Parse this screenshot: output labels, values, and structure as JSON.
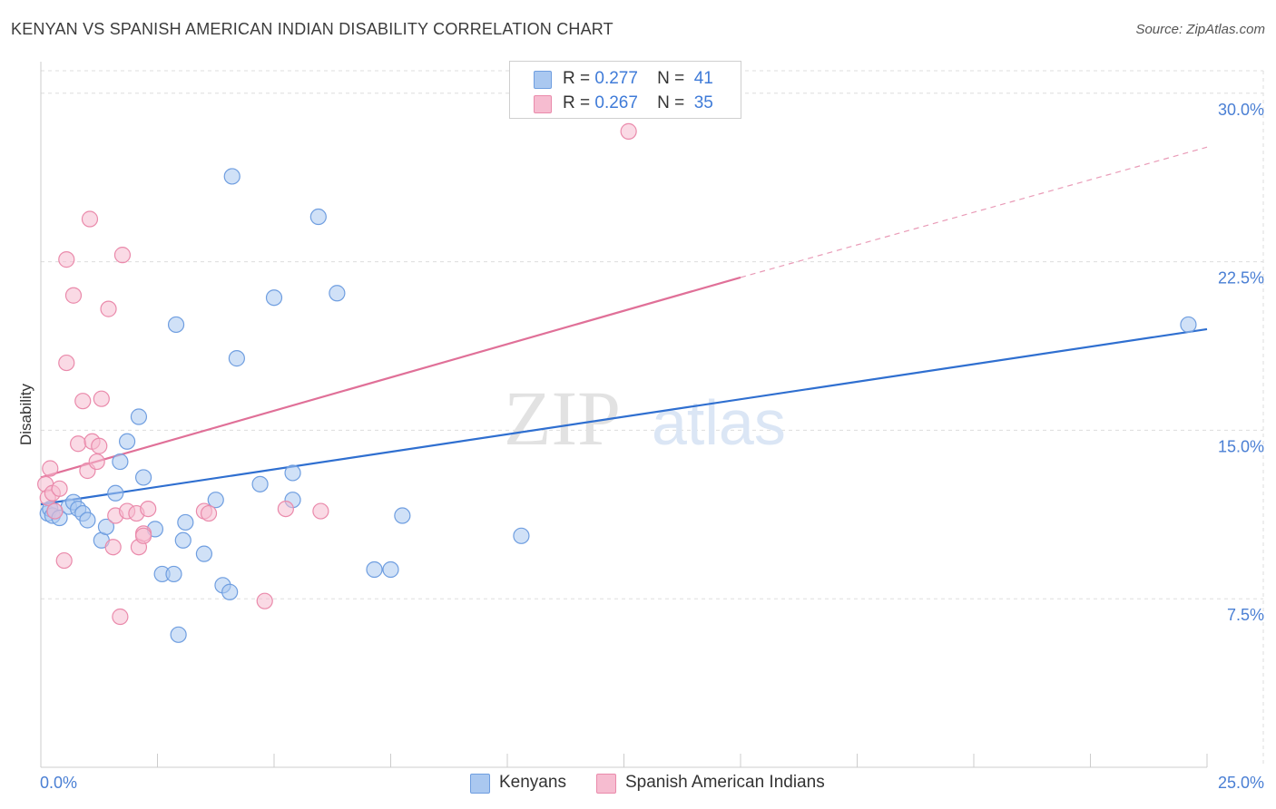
{
  "header": {
    "title": "KENYAN VS SPANISH AMERICAN INDIAN DISABILITY CORRELATION CHART",
    "source": "Source: ZipAtlas.com"
  },
  "legend": {
    "rows": [
      {
        "r_label": "R =",
        "r_value": "0.277",
        "n_label": "N =",
        "n_value": "41"
      },
      {
        "r_label": "R =",
        "r_value": "0.267",
        "n_label": "N =",
        "n_value": "35"
      }
    ]
  },
  "bottom_legend": {
    "kenyans": "Kenyans",
    "spanish": "Spanish American Indians"
  },
  "colors": {
    "blue_fill": "#aac8f0",
    "blue_stroke": "#6f9ee0",
    "blue_line": "#2f6fd0",
    "pink_fill": "#f6bcd0",
    "pink_stroke": "#ea8aab",
    "pink_line": "#e07098",
    "grid": "#dddddd",
    "tick_text": "#4a7fd4"
  },
  "chart_data": {
    "type": "scatter",
    "title": "KENYAN VS SPANISH AMERICAN INDIAN DISABILITY CORRELATION CHART",
    "xlabel": "",
    "ylabel": "Disability",
    "xlim": [
      0,
      25
    ],
    "ylim": [
      0,
      31
    ],
    "x_tick_labels": [
      "0.0%",
      "25.0%"
    ],
    "y_ticks": [
      7.5,
      15.0,
      22.5,
      30.0
    ],
    "y_tick_labels": [
      "7.5%",
      "15.0%",
      "22.5%",
      "30.0%"
    ],
    "grid": "horizontal dashed",
    "legend_position": "top-center",
    "series": [
      {
        "name": "Kenyans",
        "r": 0.277,
        "n": 41,
        "trend": {
          "x0": 0.0,
          "y0": 11.7,
          "x1": 25.0,
          "y1": 19.5
        },
        "points": [
          [
            0.15,
            11.3
          ],
          [
            0.2,
            11.5
          ],
          [
            0.25,
            11.2
          ],
          [
            0.3,
            11.4
          ],
          [
            0.4,
            11.1
          ],
          [
            0.6,
            11.6
          ],
          [
            0.7,
            11.8
          ],
          [
            0.8,
            11.5
          ],
          [
            0.9,
            11.3
          ],
          [
            1.0,
            11.0
          ],
          [
            1.3,
            10.1
          ],
          [
            1.4,
            10.7
          ],
          [
            1.6,
            12.2
          ],
          [
            1.7,
            13.6
          ],
          [
            1.85,
            14.5
          ],
          [
            2.1,
            15.6
          ],
          [
            2.2,
            12.9
          ],
          [
            2.45,
            10.6
          ],
          [
            2.6,
            8.6
          ],
          [
            2.85,
            8.6
          ],
          [
            3.05,
            10.1
          ],
          [
            3.1,
            10.9
          ],
          [
            3.5,
            9.5
          ],
          [
            3.75,
            11.9
          ],
          [
            3.9,
            8.1
          ],
          [
            4.05,
            7.8
          ],
          [
            4.1,
            26.3
          ],
          [
            4.2,
            18.2
          ],
          [
            2.9,
            19.7
          ],
          [
            5.0,
            20.9
          ],
          [
            5.4,
            13.1
          ],
          [
            5.95,
            24.5
          ],
          [
            6.35,
            21.1
          ],
          [
            4.7,
            12.6
          ],
          [
            5.4,
            11.9
          ],
          [
            7.15,
            8.8
          ],
          [
            7.5,
            8.8
          ],
          [
            7.75,
            11.2
          ],
          [
            10.3,
            10.3
          ],
          [
            24.6,
            19.7
          ],
          [
            2.95,
            5.9
          ]
        ]
      },
      {
        "name": "Spanish American Indians",
        "r": 0.267,
        "n": 35,
        "trend": {
          "x0": 0.0,
          "y0": 12.9,
          "x1": 15.0,
          "y1": 21.8
        },
        "trend_extension": {
          "x0": 15.0,
          "y0": 21.8,
          "x1": 25.0,
          "y1": 27.6
        },
        "points": [
          [
            0.1,
            12.6
          ],
          [
            0.15,
            12.0
          ],
          [
            0.2,
            13.3
          ],
          [
            0.25,
            12.2
          ],
          [
            0.3,
            11.4
          ],
          [
            0.4,
            12.4
          ],
          [
            0.5,
            9.2
          ],
          [
            0.55,
            18.0
          ],
          [
            0.55,
            22.6
          ],
          [
            0.7,
            21.0
          ],
          [
            0.8,
            14.4
          ],
          [
            0.9,
            16.3
          ],
          [
            1.0,
            13.2
          ],
          [
            1.05,
            24.4
          ],
          [
            1.1,
            14.5
          ],
          [
            1.2,
            13.6
          ],
          [
            1.25,
            14.3
          ],
          [
            1.3,
            16.4
          ],
          [
            1.45,
            20.4
          ],
          [
            1.55,
            9.8
          ],
          [
            1.6,
            11.2
          ],
          [
            1.75,
            22.8
          ],
          [
            1.7,
            6.7
          ],
          [
            1.85,
            11.4
          ],
          [
            2.05,
            11.3
          ],
          [
            2.1,
            9.8
          ],
          [
            2.2,
            10.4
          ],
          [
            2.2,
            10.3
          ],
          [
            2.3,
            11.5
          ],
          [
            3.5,
            11.4
          ],
          [
            3.6,
            11.3
          ],
          [
            4.8,
            7.4
          ],
          [
            5.25,
            11.5
          ],
          [
            6.0,
            11.4
          ],
          [
            12.6,
            28.3
          ]
        ]
      }
    ]
  }
}
